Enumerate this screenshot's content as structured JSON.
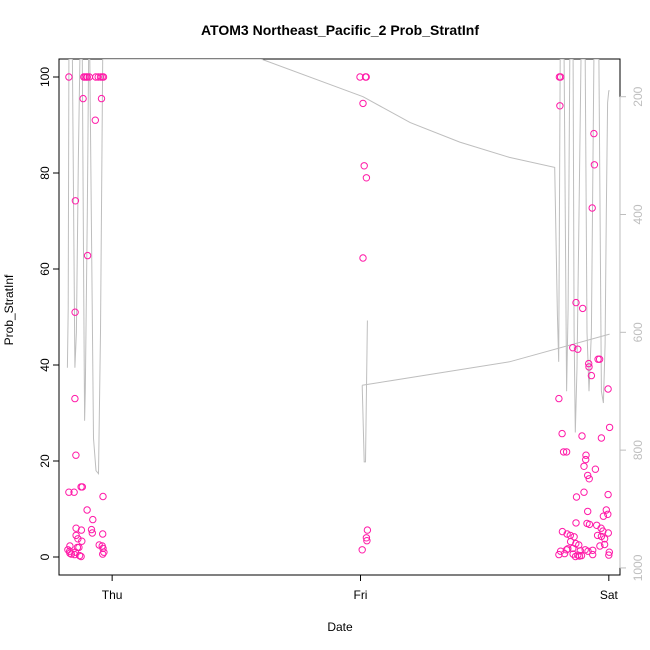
{
  "chart_data": {
    "type": "scatter",
    "title": "ATOM3 Northeast_Pacific_2 Prob_StratInf",
    "xlabel": "Date",
    "ylabel": "Prob_StratInf",
    "ylim": [
      0,
      100
    ],
    "y_ticks": [
      0,
      20,
      40,
      60,
      80,
      100
    ],
    "x_ticks": [
      {
        "label": "Thu",
        "value": 1.0
      },
      {
        "label": "Fri",
        "value": 2.0
      },
      {
        "label": "Sat",
        "value": 3.0
      }
    ],
    "xlim": [
      0.786,
      3.045
    ],
    "grid": false,
    "point_color": "#ff1aa8",
    "line_color": "#bebebe",
    "right_axis": {
      "ticks": [
        200,
        400,
        600,
        800,
        1000
      ],
      "ylim": [
        1012,
        136
      ],
      "reversed": true,
      "color": "#bebebe"
    },
    "series": [
      {
        "kind": "points",
        "points": [
          [
            0.826,
            100
          ],
          [
            0.886,
            100
          ],
          [
            0.891,
            100
          ],
          [
            0.897,
            100
          ],
          [
            0.9,
            100
          ],
          [
            0.908,
            100
          ],
          [
            0.934,
            100
          ],
          [
            0.944,
            100
          ],
          [
            0.953,
            100
          ],
          [
            0.96,
            100
          ],
          [
            0.965,
            100
          ],
          [
            0.883,
            95.5
          ],
          [
            0.957,
            95.5
          ],
          [
            0.932,
            91
          ],
          [
            0.852,
            74.2
          ],
          [
            0.901,
            62.8
          ],
          [
            0.851,
            51
          ],
          [
            0.85,
            33
          ],
          [
            0.854,
            21.2
          ],
          [
            0.826,
            13.5
          ],
          [
            0.847,
            13.5
          ],
          [
            0.875,
            14.6
          ],
          [
            0.88,
            14.6
          ],
          [
            0.963,
            12.6
          ],
          [
            0.899,
            9.8
          ],
          [
            0.922,
            7.8
          ],
          [
            0.855,
            6
          ],
          [
            0.876,
            5.6
          ],
          [
            0.917,
            5.7
          ],
          [
            0.92,
            5
          ],
          [
            0.962,
            4.8
          ],
          [
            0.855,
            4.5
          ],
          [
            0.862,
            3.8
          ],
          [
            0.878,
            3.3
          ],
          [
            0.83,
            2.3
          ],
          [
            0.86,
            2
          ],
          [
            0.866,
            2
          ],
          [
            0.948,
            2.5
          ],
          [
            0.96,
            2.3
          ],
          [
            0.963,
            1.8
          ],
          [
            0.822,
            1.5
          ],
          [
            0.829,
            1.2
          ],
          [
            0.852,
            1
          ],
          [
            0.83,
            0.8
          ],
          [
            0.836,
            0.6
          ],
          [
            0.849,
            0.5
          ],
          [
            0.869,
            0.3
          ],
          [
            0.875,
            0.1
          ],
          [
            0.962,
            0.6
          ],
          [
            0.967,
            1
          ],
          [
            1.998,
            100
          ],
          [
            2.02,
            100
          ],
          [
            2.023,
            100
          ],
          [
            2.01,
            94.5
          ],
          [
            2.015,
            81.5
          ],
          [
            2.024,
            79
          ],
          [
            2.01,
            62.3
          ],
          [
            2.028,
            5.6
          ],
          [
            2.024,
            4
          ],
          [
            2.026,
            3.4
          ],
          [
            2.007,
            1.5
          ],
          [
            2.801,
            100
          ],
          [
            2.806,
            100
          ],
          [
            2.803,
            94
          ],
          [
            2.799,
            33
          ],
          [
            2.868,
            53
          ],
          [
            2.895,
            51.8
          ],
          [
            2.855,
            43.6
          ],
          [
            2.875,
            43.3
          ],
          [
            2.919,
            40.3
          ],
          [
            2.92,
            39.6
          ],
          [
            2.93,
            37.8
          ],
          [
            2.94,
            88.2
          ],
          [
            2.942,
            81.7
          ],
          [
            2.933,
            72.7
          ],
          [
            2.957,
            41.2
          ],
          [
            2.963,
            41.2
          ],
          [
            2.997,
            35
          ],
          [
            3.003,
            27
          ],
          [
            2.812,
            25.7
          ],
          [
            2.892,
            25.2
          ],
          [
            2.97,
            24.8
          ],
          [
            2.818,
            21.9
          ],
          [
            2.83,
            21.9
          ],
          [
            2.908,
            21.2
          ],
          [
            2.907,
            20.3
          ],
          [
            2.9,
            18.9
          ],
          [
            2.946,
            18.3
          ],
          [
            2.915,
            17
          ],
          [
            2.921,
            16.3
          ],
          [
            2.9,
            13.5
          ],
          [
            2.87,
            12.5
          ],
          [
            2.997,
            13
          ],
          [
            2.915,
            9.5
          ],
          [
            2.99,
            9.8
          ],
          [
            2.996,
            8.9
          ],
          [
            2.978,
            8.5
          ],
          [
            2.868,
            7.1
          ],
          [
            2.912,
            7
          ],
          [
            2.922,
            6.8
          ],
          [
            2.951,
            6.6
          ],
          [
            2.969,
            6
          ],
          [
            2.976,
            5.4
          ],
          [
            2.998,
            5
          ],
          [
            2.813,
            5.3
          ],
          [
            2.832,
            4.8
          ],
          [
            2.845,
            4.5
          ],
          [
            2.86,
            4.2
          ],
          [
            2.955,
            4.5
          ],
          [
            2.97,
            4.3
          ],
          [
            2.983,
            3.8
          ],
          [
            2.846,
            3.2
          ],
          [
            2.867,
            2.8
          ],
          [
            2.879,
            2.5
          ],
          [
            2.964,
            2.3
          ],
          [
            2.983,
            2.6
          ],
          [
            2.806,
            1.2
          ],
          [
            2.83,
            1.5
          ],
          [
            2.835,
            1.7
          ],
          [
            2.855,
            1.8
          ],
          [
            2.885,
            1.3
          ],
          [
            2.905,
            1.5
          ],
          [
            2.916,
            1.2
          ],
          [
            2.935,
            1.4
          ],
          [
            2.799,
            0.5
          ],
          [
            2.822,
            0.7
          ],
          [
            2.856,
            0.6
          ],
          [
            2.875,
            0.4
          ],
          [
            2.89,
            0.3
          ],
          [
            2.935,
            0.5
          ],
          [
            3.0,
            0.4
          ],
          [
            3.002,
            1
          ],
          [
            2.866,
            0.1
          ],
          [
            2.882,
            0.2
          ]
        ]
      },
      {
        "kind": "line",
        "axis": "right",
        "segments": [
          [
            [
              0.82,
              660
            ],
            [
              0.823,
              560
            ],
            [
              0.826,
              136
            ],
            [
              0.84,
              136
            ],
            [
              0.85,
              660
            ],
            [
              0.856,
              600
            ],
            [
              0.864,
              300
            ],
            [
              0.87,
              136
            ],
            [
              0.88,
              136
            ],
            [
              0.886,
              550
            ],
            [
              0.889,
              750
            ],
            [
              0.892,
              700
            ],
            [
              0.9,
              400
            ],
            [
              0.905,
              136
            ],
            [
              0.91,
              136
            ],
            [
              0.925,
              780
            ],
            [
              0.935,
              835
            ],
            [
              0.945,
              840
            ],
            [
              0.953,
              600
            ],
            [
              0.962,
              136
            ],
            [
              0.98,
              136
            ],
            [
              1.0,
              136
            ],
            [
              1.2,
              136
            ],
            [
              1.6,
              136
            ],
            [
              2.01,
              200
            ],
            [
              2.2,
              244
            ],
            [
              2.4,
              277
            ],
            [
              2.6,
              303
            ],
            [
              2.782,
              320
            ],
            [
              2.793,
              570
            ],
            [
              2.798,
              650
            ],
            [
              2.804,
              136
            ],
            [
              2.82,
              136
            ],
            [
              2.83,
              700
            ],
            [
              2.836,
              560
            ],
            [
              2.843,
              136
            ],
            [
              2.856,
              136
            ],
            [
              2.86,
              600
            ],
            [
              2.865,
              770
            ],
            [
              2.872,
              660
            ],
            [
              2.88,
              400
            ],
            [
              2.888,
              136
            ],
            [
              2.905,
              136
            ],
            [
              2.912,
              600
            ],
            [
              2.92,
              700
            ],
            [
              2.93,
              600
            ],
            [
              2.94,
              136
            ],
            [
              2.96,
              136
            ],
            [
              2.97,
              700
            ],
            [
              2.978,
              720
            ],
            [
              2.985,
              620
            ],
            [
              2.99,
              400
            ],
            [
              2.995,
              210
            ],
            [
              3.0,
              190
            ],
            [
              3.003,
              190
            ]
          ],
          [
            [
              2.007,
              690
            ],
            [
              2.015,
              820
            ],
            [
              2.02,
              820
            ],
            [
              2.028,
              580
            ],
            [
              2.028,
              580
            ]
          ],
          [
            [
              2.007,
              690
            ],
            [
              2.6,
              650
            ],
            [
              3.003,
              603
            ]
          ]
        ]
      }
    ]
  }
}
